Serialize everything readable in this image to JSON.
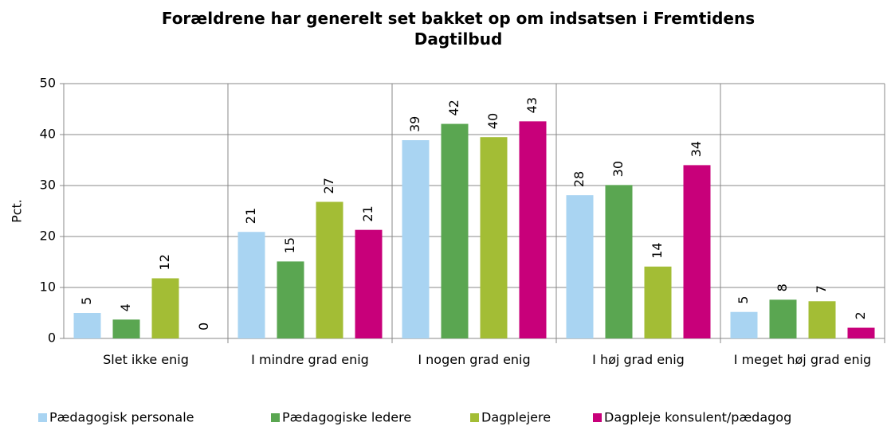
{
  "chart_data": {
    "type": "bar",
    "title": "Forældrene har generelt set bakket op om indsatsen i Fremtidens Dagtilbud",
    "y_label": "Pct.",
    "categories": [
      "Slet ikke enig",
      "I mindre grad enig",
      "I nogen grad enig",
      "I høj grad enig",
      "I meget høj grad enig"
    ],
    "series": [
      {
        "name": "Pædagogisk personale",
        "color": "#a9d4f2",
        "values": [
          5.0,
          20.9,
          38.9,
          28.1,
          5.2
        ],
        "value_labels": [
          "5",
          "21",
          "39",
          "28",
          "5"
        ]
      },
      {
        "name": "Pædagogiske ledere",
        "color": "#5aa651",
        "values": [
          3.7,
          15.1,
          42.1,
          30.1,
          7.6
        ],
        "value_labels": [
          "4",
          "15",
          "42",
          "30",
          "8"
        ]
      },
      {
        "name": "Dagplejere",
        "color": "#a3bd35",
        "values": [
          11.8,
          26.8,
          39.5,
          14.1,
          7.3
        ],
        "value_labels": [
          "12",
          "27",
          "40",
          "14",
          "7"
        ]
      },
      {
        "name": "Dagpleje konsulent/pædagog",
        "color": "#c8007a",
        "values": [
          0,
          21.3,
          42.6,
          34.0,
          2.1
        ],
        "value_labels": [
          "0",
          "21",
          "43",
          "34",
          "2"
        ]
      }
    ],
    "ylim": [
      0,
      50
    ],
    "yticks": [
      0,
      10,
      20,
      30,
      40,
      50
    ],
    "grid": true,
    "legend": "bottom"
  }
}
